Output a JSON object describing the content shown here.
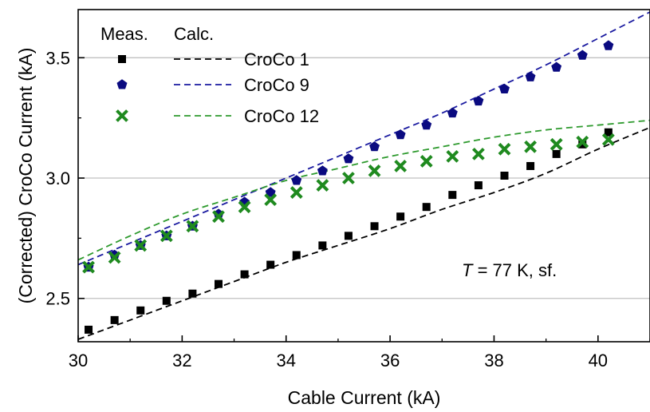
{
  "chart_data": {
    "type": "scatter",
    "title": "",
    "xlabel": "Cable Current (kA)",
    "ylabel": "(Corrected) CroCo Current (kA)",
    "xlim": [
      30,
      41
    ],
    "ylim": [
      2.32,
      3.7
    ],
    "x_ticks": [
      30,
      32,
      34,
      36,
      38,
      40
    ],
    "x_tick_labels": [
      "30",
      "32",
      "34",
      "36",
      "38",
      "40"
    ],
    "y_ticks": [
      2.5,
      3.0,
      3.5
    ],
    "y_tick_labels": [
      "2.5",
      "3.0",
      "3.5"
    ],
    "grid": "horizontal major",
    "legend": {
      "placement": "top-left",
      "header_measured": "Meas.",
      "header_calculated": "Calc."
    },
    "annotation": {
      "italic": "T",
      "rest": " = 77 K, sf."
    },
    "measured": [
      {
        "name": "CroCo 1",
        "color": "#000000",
        "marker": "square",
        "x": [
          30.2,
          30.7,
          31.2,
          31.7,
          32.2,
          32.7,
          33.2,
          33.7,
          34.2,
          34.7,
          35.2,
          35.7,
          36.2,
          36.7,
          37.2,
          37.7,
          38.2,
          38.7,
          39.2,
          39.7,
          40.2
        ],
        "y": [
          2.37,
          2.41,
          2.45,
          2.49,
          2.52,
          2.56,
          2.6,
          2.64,
          2.68,
          2.72,
          2.76,
          2.8,
          2.84,
          2.88,
          2.93,
          2.97,
          3.01,
          3.05,
          3.1,
          3.14,
          3.19
        ]
      },
      {
        "name": "CroCo 9",
        "color": "#0a0a80",
        "marker": "pentagon",
        "x": [
          30.2,
          30.7,
          31.2,
          31.7,
          32.2,
          32.7,
          33.2,
          33.7,
          34.2,
          34.7,
          35.2,
          35.7,
          36.2,
          36.7,
          37.2,
          37.7,
          38.2,
          38.7,
          39.2,
          39.7,
          40.2
        ],
        "y": [
          2.63,
          2.68,
          2.72,
          2.76,
          2.8,
          2.85,
          2.9,
          2.94,
          2.99,
          3.03,
          3.08,
          3.13,
          3.18,
          3.22,
          3.27,
          3.32,
          3.37,
          3.42,
          3.46,
          3.51,
          3.55
        ]
      },
      {
        "name": "CroCo 12",
        "color": "#1f8a1f",
        "marker": "x",
        "x": [
          30.2,
          30.7,
          31.2,
          31.7,
          32.2,
          32.7,
          33.2,
          33.7,
          34.2,
          34.7,
          35.2,
          35.7,
          36.2,
          36.7,
          37.2,
          37.7,
          38.2,
          38.7,
          39.2,
          39.7,
          40.2
        ],
        "y": [
          2.63,
          2.67,
          2.72,
          2.76,
          2.8,
          2.84,
          2.88,
          2.91,
          2.94,
          2.97,
          3.0,
          3.03,
          3.05,
          3.07,
          3.09,
          3.1,
          3.12,
          3.13,
          3.14,
          3.15,
          3.16
        ]
      }
    ],
    "calculated": [
      {
        "name": "CroCo 1",
        "color": "#000000",
        "x": [
          30,
          31,
          32,
          33,
          34,
          35,
          36,
          37,
          38,
          39,
          40,
          41
        ],
        "y": [
          2.33,
          2.41,
          2.49,
          2.57,
          2.65,
          2.72,
          2.79,
          2.87,
          2.94,
          3.02,
          3.12,
          3.21
        ]
      },
      {
        "name": "CroCo 9",
        "color": "#1a1aa0",
        "x": [
          30,
          31,
          32,
          33,
          34,
          35,
          36,
          37,
          38,
          39,
          40,
          41
        ],
        "y": [
          2.64,
          2.73,
          2.82,
          2.91,
          3.0,
          3.09,
          3.18,
          3.27,
          3.37,
          3.47,
          3.58,
          3.69
        ]
      },
      {
        "name": "CroCo 12",
        "color": "#2e9a2e",
        "x": [
          30,
          31,
          32,
          33,
          34,
          35,
          36,
          37,
          38,
          39,
          40,
          41
        ],
        "y": [
          2.66,
          2.76,
          2.85,
          2.92,
          2.99,
          3.04,
          3.09,
          3.13,
          3.17,
          3.2,
          3.22,
          3.24
        ]
      }
    ]
  }
}
